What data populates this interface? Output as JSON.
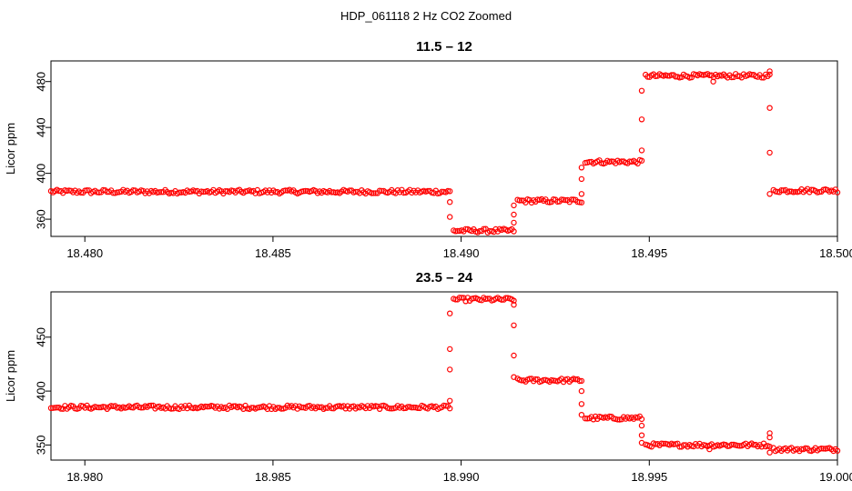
{
  "suptitle": "HDP_061118  2 Hz CO2 Zoomed",
  "colors": {
    "points": "#ff0000",
    "axes": "#000000",
    "background": "#ffffff"
  },
  "chart_data": [
    {
      "type": "scatter",
      "title": "11.5 – 12",
      "xlabel": "",
      "ylabel": "Licor ppm",
      "xlim": [
        18.4791,
        18.5
      ],
      "ylim": [
        345,
        498
      ],
      "xticks": [
        18.48,
        18.485,
        18.49,
        18.495,
        18.5
      ],
      "xtick_labels": [
        "18.480",
        "18.485",
        "18.490",
        "18.495",
        "18.500"
      ],
      "yticks": [
        360,
        400,
        440,
        480
      ],
      "ytick_labels": [
        "360",
        "400",
        "440",
        "480"
      ],
      "grid": false,
      "segments": [
        {
          "x_start": 18.4791,
          "x_end": 18.4897,
          "y": 384
        },
        {
          "x_start": 18.4898,
          "x_end": 18.4914,
          "y": 350
        },
        {
          "x_start": 18.4915,
          "x_end": 18.4932,
          "y": 376
        },
        {
          "x_start": 18.4933,
          "x_end": 18.4948,
          "y": 410
        },
        {
          "x_start": 18.4949,
          "x_end": 18.4982,
          "y": 485
        },
        {
          "x_start": 18.4983,
          "x_end": 18.5,
          "y": 385
        }
      ],
      "transition_points": [
        {
          "x": 18.4897,
          "y": 375
        },
        {
          "x": 18.4897,
          "y": 362
        },
        {
          "x": 18.4914,
          "y": 357
        },
        {
          "x": 18.4914,
          "y": 364
        },
        {
          "x": 18.4914,
          "y": 372
        },
        {
          "x": 18.4932,
          "y": 382
        },
        {
          "x": 18.4932,
          "y": 395
        },
        {
          "x": 18.4932,
          "y": 405
        },
        {
          "x": 18.4948,
          "y": 420
        },
        {
          "x": 18.4948,
          "y": 447
        },
        {
          "x": 18.4948,
          "y": 472
        },
        {
          "x": 18.4982,
          "y": 489
        },
        {
          "x": 18.4982,
          "y": 457
        },
        {
          "x": 18.4982,
          "y": 418
        },
        {
          "x": 18.4982,
          "y": 382
        },
        {
          "x": 18.4967,
          "y": 480
        }
      ]
    },
    {
      "type": "scatter",
      "title": "23.5 – 24",
      "xlabel": "",
      "ylabel": "Licor ppm",
      "xlim": [
        18.9791,
        19.0
      ],
      "ylim": [
        336,
        492
      ],
      "xticks": [
        18.98,
        18.985,
        18.99,
        18.995,
        19.0
      ],
      "xtick_labels": [
        "18.980",
        "18.985",
        "18.990",
        "18.995",
        "19.000"
      ],
      "yticks": [
        350,
        400,
        450
      ],
      "ytick_labels": [
        "350",
        "400",
        "450"
      ],
      "grid": false,
      "segments": [
        {
          "x_start": 18.9791,
          "x_end": 18.9897,
          "y": 385
        },
        {
          "x_start": 18.9898,
          "x_end": 18.9914,
          "y": 485
        },
        {
          "x_start": 18.9915,
          "x_end": 18.9932,
          "y": 410
        },
        {
          "x_start": 18.9933,
          "x_end": 18.9948,
          "y": 375
        },
        {
          "x_start": 18.9949,
          "x_end": 18.9982,
          "y": 350
        },
        {
          "x_start": 18.9983,
          "x_end": 19.0,
          "y": 346
        }
      ],
      "transition_points": [
        {
          "x": 18.9897,
          "y": 391
        },
        {
          "x": 18.9897,
          "y": 420
        },
        {
          "x": 18.9897,
          "y": 439
        },
        {
          "x": 18.9897,
          "y": 472
        },
        {
          "x": 18.9914,
          "y": 480
        },
        {
          "x": 18.9914,
          "y": 461
        },
        {
          "x": 18.9914,
          "y": 433
        },
        {
          "x": 18.9914,
          "y": 413
        },
        {
          "x": 18.9932,
          "y": 400
        },
        {
          "x": 18.9932,
          "y": 388
        },
        {
          "x": 18.9932,
          "y": 378
        },
        {
          "x": 18.9948,
          "y": 368
        },
        {
          "x": 18.9948,
          "y": 359
        },
        {
          "x": 18.9948,
          "y": 352
        },
        {
          "x": 18.9982,
          "y": 361
        },
        {
          "x": 18.9982,
          "y": 357
        },
        {
          "x": 18.9982,
          "y": 343
        },
        {
          "x": 18.9966,
          "y": 346
        }
      ]
    }
  ]
}
